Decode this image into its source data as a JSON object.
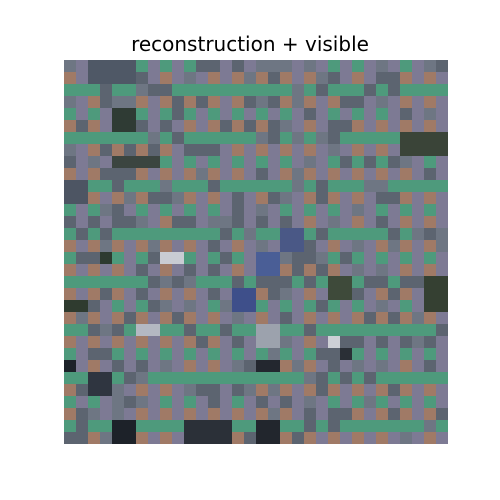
{
  "figure": {
    "title": "reconstruction + visible"
  },
  "image": {
    "description_label": "pixelated reconstruction mosaic",
    "patch_grid": 32,
    "palette": {
      "visible_green": "#4e9a7c",
      "visible_tan": "#a07a66",
      "visible_violet": "#7d7a94",
      "visible_olive": "#9c8a6e",
      "recon_slate": "#5c6470",
      "recon_steel": "#6e7683",
      "recon_blue": "#4a5e96",
      "recon_dark_green": "#2f3b34",
      "recon_near_black": "#1d2229",
      "recon_light": "#c9ccd3",
      "recon_olive_dark": "#3e4a3a"
    }
  }
}
